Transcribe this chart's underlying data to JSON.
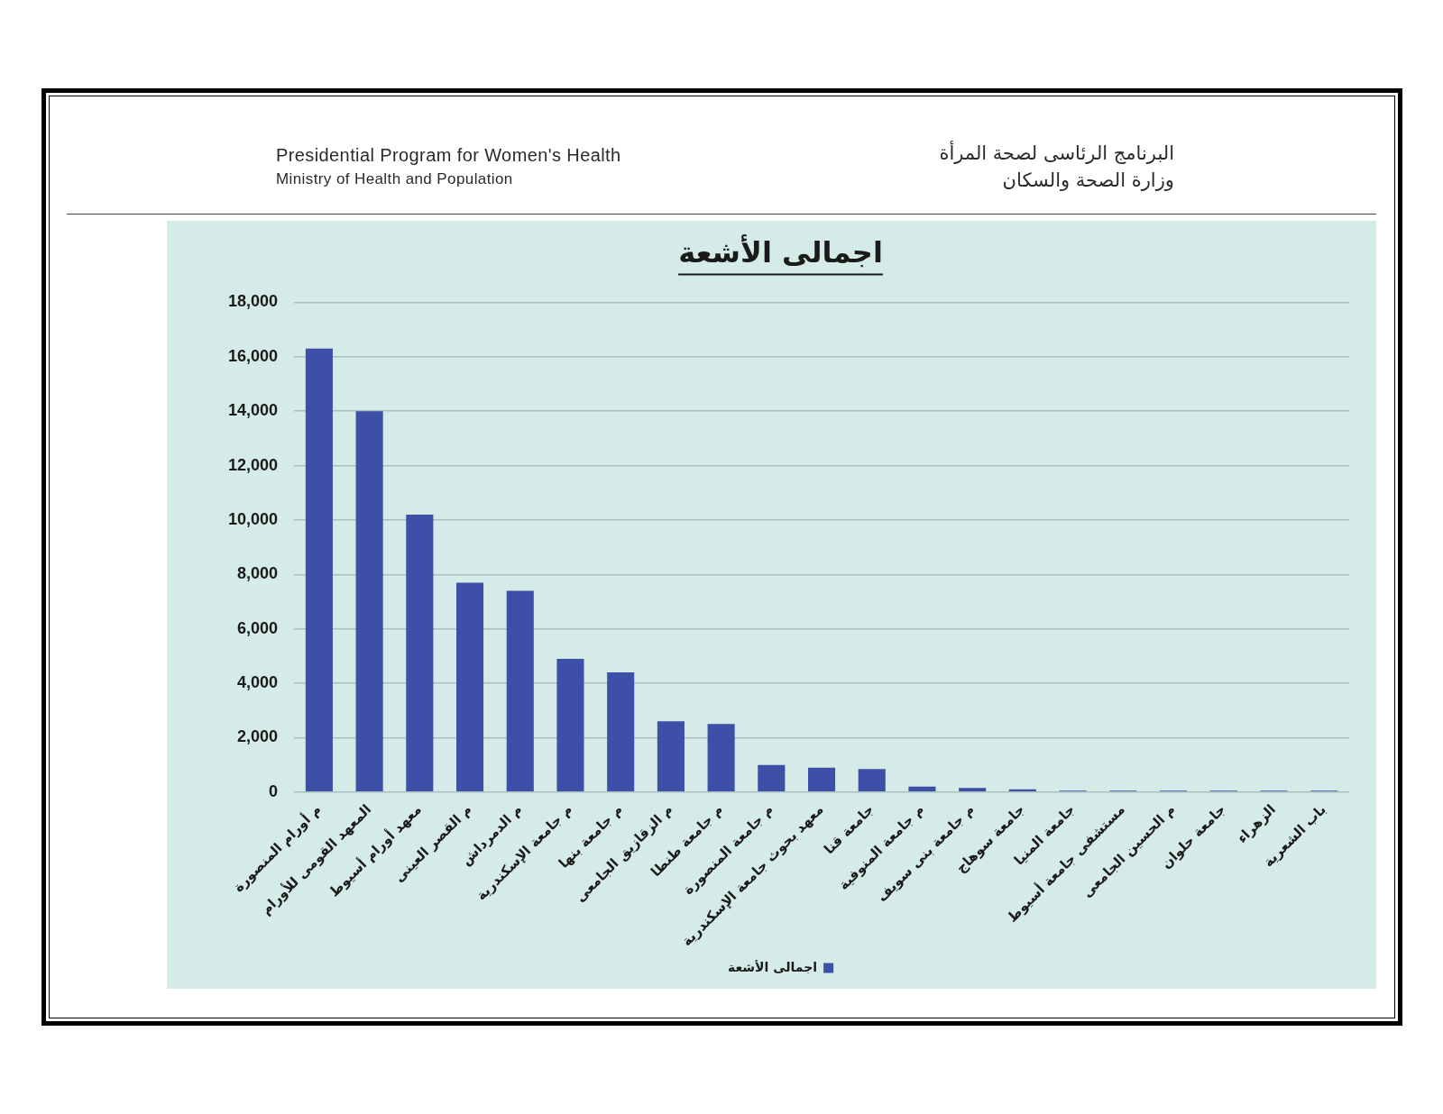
{
  "chart_data": {
    "type": "bar",
    "title": "اجمالى الأشعة",
    "categories": [
      "م أورام المنصورة",
      "المعهد القومى للأورام",
      "معهد أورام أسيوط",
      "م القصر العينى",
      "م الدمرداش",
      "م جامعة الإسكندرية",
      "م جامعة بنها",
      "م الزقازيق الجامعى",
      "م جامعة طنطا",
      "م جامعة المنصورة",
      "معهد بحوث جامعة الإسكندرية",
      "جامعة قنا",
      "م جامعة المنوفية",
      "م جامعة بنى سويف",
      "جامعة سوهاج",
      "جامعة المنيا",
      "مستشفى جامعة أسيوط",
      "م الحسين الجامعى",
      "جامعة حلوان",
      "الزهراء",
      "باب الشعرية"
    ],
    "series": [
      {
        "name": "اجمالى الأشعة",
        "color": "#3d4fa6",
        "values": [
          16300,
          14000,
          10200,
          7700,
          7400,
          4900,
          4400,
          2600,
          2500,
          1000,
          900,
          850,
          200,
          150,
          100,
          50,
          50,
          50,
          50,
          50,
          50
        ]
      }
    ],
    "ylim": [
      0,
      18000
    ],
    "yticks": [
      {
        "value": 0,
        "label": "0"
      },
      {
        "value": 2000,
        "label": "2,000"
      },
      {
        "value": 4000,
        "label": "4,000"
      },
      {
        "value": 6000,
        "label": "6,000"
      },
      {
        "value": 8000,
        "label": "8,000"
      },
      {
        "value": 10000,
        "label": "10,000"
      },
      {
        "value": 12000,
        "label": "12,000"
      },
      {
        "value": 14000,
        "label": "14,000"
      },
      {
        "value": 16000,
        "label": "16,000"
      },
      {
        "value": 18000,
        "label": "18,000"
      }
    ],
    "grid": "y",
    "legend": "bottom",
    "annotations": [
      "Presidential Program for Women's Health",
      "Ministry of Health and Population",
      "البرنامج الرئاسى لصحة المرأة",
      "وزارة الصحة والسكان"
    ]
  }
}
